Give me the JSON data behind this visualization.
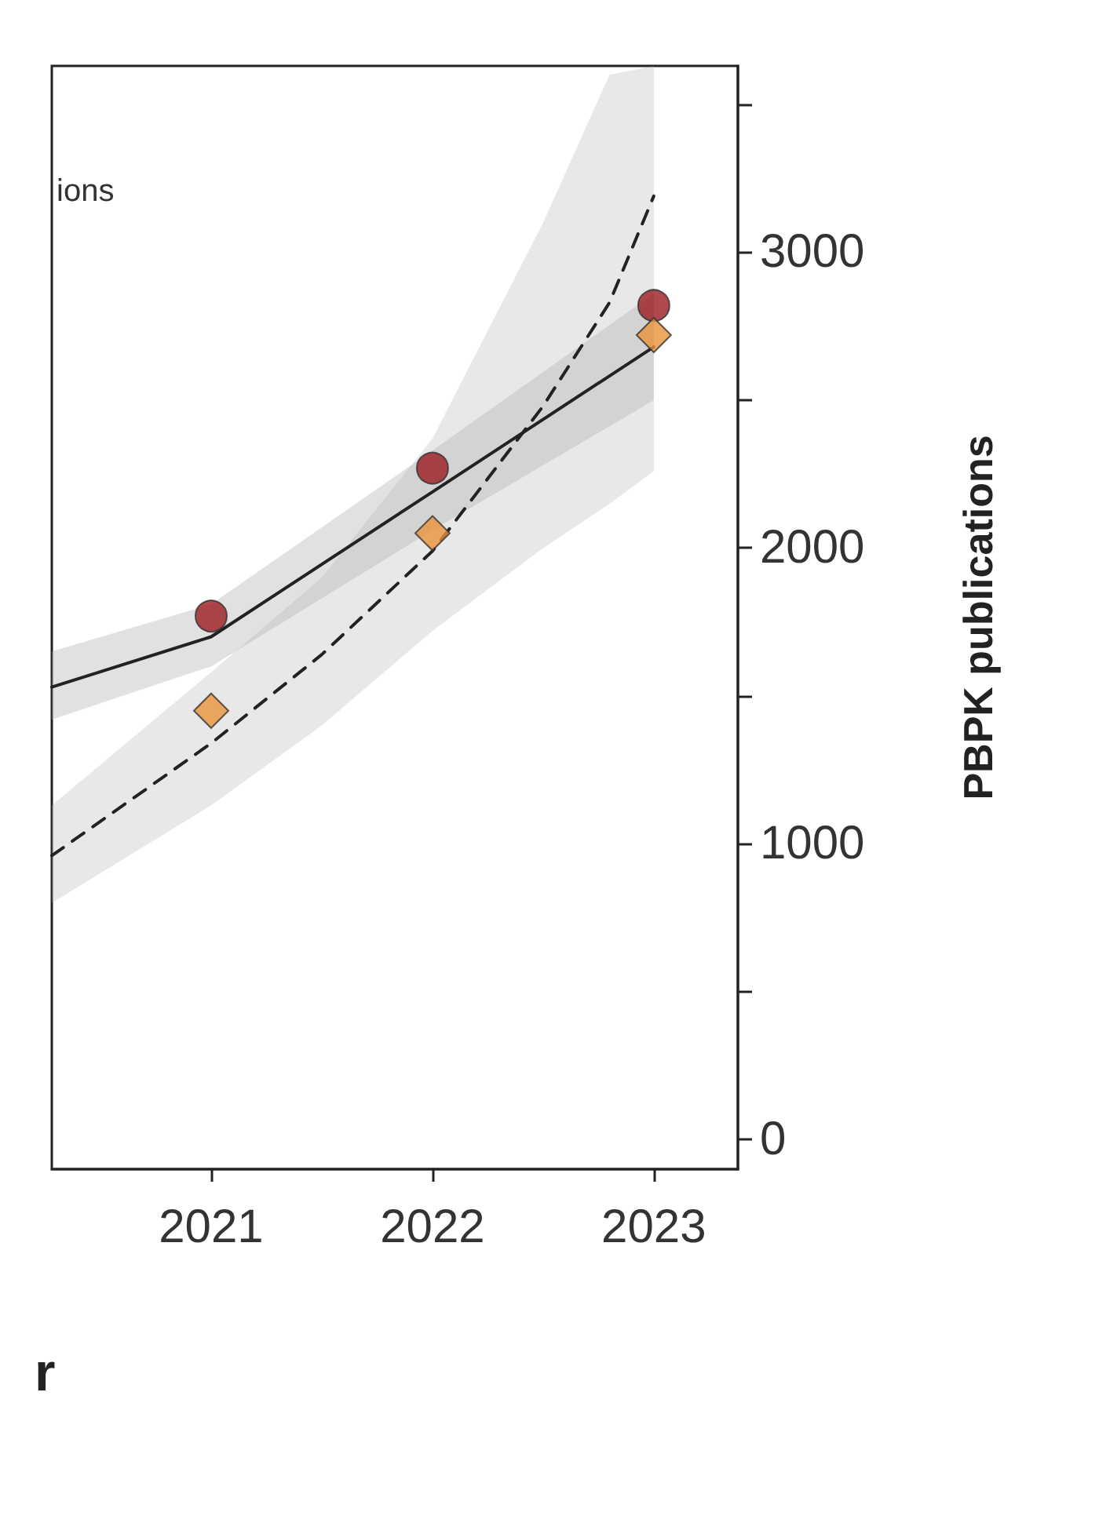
{
  "chart_data": {
    "type": "scatter",
    "xlabel": "r",
    "y2label": "PBPK publications",
    "annotations": [
      "ions"
    ],
    "xlim": [
      2020.28,
      2023.38
    ],
    "xticks": [
      2021,
      2022,
      2023
    ],
    "y2lim": [
      -100,
      3630
    ],
    "y2ticks": [
      0,
      {
        "value": 500,
        "label": null
      },
      1000,
      {
        "value": 1500,
        "label": null
      },
      2000,
      {
        "value": 2500,
        "label": null
      },
      3000,
      {
        "value": 3500,
        "label": null
      }
    ],
    "series": [
      {
        "type": "line",
        "x": [
          2020.28,
          2021,
          2022,
          2023
        ],
        "values": [
          1530,
          1700,
          2190,
          2680
        ],
        "lower": [
          1420,
          1600,
          2060,
          2500
        ],
        "upper": [
          1650,
          1810,
          2330,
          2860
        ],
        "color": "#222222",
        "line_style": "solid",
        "marker": "none",
        "axis": "y2"
      },
      {
        "type": "line",
        "x": [
          2020.28,
          2021,
          2021.5,
          2022,
          2022.5,
          2022.8,
          2023
        ],
        "values": [
          960,
          1340,
          1640,
          1990,
          2480,
          2830,
          3190
        ],
        "lower": [
          800,
          1130,
          1400,
          1720,
          2000,
          2150,
          2260
        ],
        "upper": [
          1130,
          1580,
          1900,
          2370,
          3100,
          3600,
          3630
        ],
        "color": "#222222",
        "line_style": "dashed",
        "marker": "none",
        "axis": "y2"
      },
      {
        "x": [
          2021,
          2022,
          2023
        ],
        "values": [
          1770,
          2270,
          2820
        ],
        "color": "#9b1c22",
        "marker": "circle",
        "axis": "y2"
      },
      {
        "x": [
          2021,
          2022,
          2023
        ],
        "values": [
          1450,
          2050,
          2720
        ],
        "color": "#e8943a",
        "marker": "diamond",
        "axis": "y2"
      }
    ]
  }
}
